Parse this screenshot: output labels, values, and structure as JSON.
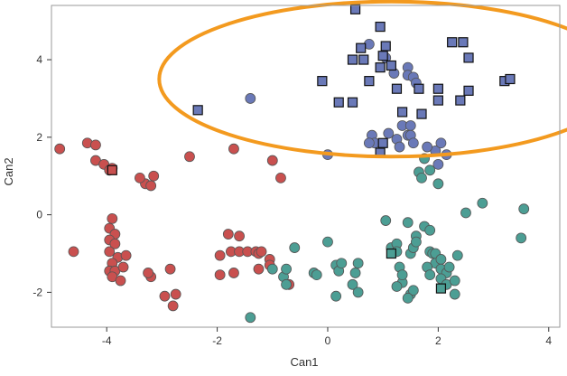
{
  "chart_data": {
    "type": "scatter",
    "xlabel": "Can1",
    "ylabel": "Can2",
    "xlim": [
      -5.0,
      4.2
    ],
    "ylim": [
      -2.9,
      5.4
    ],
    "xticks": [
      -4,
      -2,
      0,
      2,
      4
    ],
    "yticks": [
      -2,
      0,
      2,
      4
    ],
    "grid": false,
    "legend": "none",
    "colors": {
      "red": "#c9504f",
      "teal": "#4c9e94",
      "blue": "#6a79b8",
      "marker_edge": "#3a3a3a",
      "ellipse": "#f39a1f",
      "frame": "#9a9a9a"
    },
    "series": [
      {
        "color_key": "red",
        "marker": "circle",
        "points": [
          [
            -4.85,
            1.7
          ],
          [
            -4.35,
            1.85
          ],
          [
            -4.2,
            1.8
          ],
          [
            -4.2,
            1.4
          ],
          [
            -4.05,
            1.3
          ],
          [
            -3.95,
            1.15
          ],
          [
            -3.9,
            1.2
          ],
          [
            -3.15,
            1.0
          ],
          [
            -3.3,
            0.8
          ],
          [
            -3.4,
            0.95
          ],
          [
            -3.2,
            0.75
          ],
          [
            -2.5,
            1.5
          ],
          [
            -1.7,
            1.7
          ],
          [
            -1.0,
            1.4
          ],
          [
            -0.85,
            0.95
          ],
          [
            -4.6,
            -0.95
          ],
          [
            -3.9,
            -0.1
          ],
          [
            -3.95,
            -0.35
          ],
          [
            -3.85,
            -0.5
          ],
          [
            -3.95,
            -0.65
          ],
          [
            -3.85,
            -0.75
          ],
          [
            -3.95,
            -0.95
          ],
          [
            -3.8,
            -1.1
          ],
          [
            -3.65,
            -1.05
          ],
          [
            -3.9,
            -1.25
          ],
          [
            -3.95,
            -1.45
          ],
          [
            -3.85,
            -1.45
          ],
          [
            -3.9,
            -1.6
          ],
          [
            -3.75,
            -1.7
          ],
          [
            -3.7,
            -1.35
          ],
          [
            -3.2,
            -1.6
          ],
          [
            -3.25,
            -1.5
          ],
          [
            -2.85,
            -1.4
          ],
          [
            -2.8,
            -2.35
          ],
          [
            -2.95,
            -2.1
          ],
          [
            -2.75,
            -2.05
          ],
          [
            -1.8,
            -0.5
          ],
          [
            -1.75,
            -0.95
          ],
          [
            -1.6,
            -0.55
          ],
          [
            -1.6,
            -0.95
          ],
          [
            -1.45,
            -0.95
          ],
          [
            -1.3,
            -0.95
          ],
          [
            -1.25,
            -1.0
          ],
          [
            -1.2,
            -0.95
          ],
          [
            -1.05,
            -1.15
          ],
          [
            -1.05,
            -1.3
          ],
          [
            -1.25,
            -1.4
          ],
          [
            -1.95,
            -1.05
          ],
          [
            -1.95,
            -1.55
          ],
          [
            -1.7,
            -1.5
          ],
          [
            -0.7,
            -1.8
          ]
        ]
      },
      {
        "color_key": "teal",
        "marker": "circle",
        "points": [
          [
            1.75,
            1.45
          ],
          [
            1.65,
            1.1
          ],
          [
            1.85,
            1.15
          ],
          [
            2.0,
            0.8
          ],
          [
            1.7,
            0.95
          ],
          [
            -1.4,
            -2.65
          ],
          [
            -0.8,
            -1.6
          ],
          [
            -0.75,
            -1.8
          ],
          [
            -0.6,
            -0.85
          ],
          [
            -1.0,
            -1.4
          ],
          [
            -0.75,
            -1.4
          ],
          [
            -0.25,
            -1.5
          ],
          [
            -0.2,
            -1.55
          ],
          [
            0.0,
            -0.7
          ],
          [
            0.15,
            -1.3
          ],
          [
            0.2,
            -1.45
          ],
          [
            0.25,
            -1.25
          ],
          [
            0.55,
            -1.25
          ],
          [
            0.5,
            -1.5
          ],
          [
            0.45,
            -1.8
          ],
          [
            0.15,
            -2.1
          ],
          [
            0.55,
            -2.0
          ],
          [
            1.05,
            -0.15
          ],
          [
            1.15,
            -0.85
          ],
          [
            1.25,
            -0.75
          ],
          [
            1.25,
            -0.95
          ],
          [
            1.3,
            -1.35
          ],
          [
            1.35,
            -1.75
          ],
          [
            1.5,
            -1.0
          ],
          [
            1.55,
            -0.85
          ],
          [
            1.6,
            -0.55
          ],
          [
            1.6,
            -0.7
          ],
          [
            1.45,
            -0.2
          ],
          [
            1.75,
            -0.3
          ],
          [
            1.85,
            -0.4
          ],
          [
            1.85,
            -0.95
          ],
          [
            1.9,
            -1.0
          ],
          [
            1.95,
            -1.0
          ],
          [
            1.95,
            -1.25
          ],
          [
            2.05,
            -1.15
          ],
          [
            2.05,
            -1.4
          ],
          [
            2.15,
            -1.5
          ],
          [
            2.2,
            -1.35
          ],
          [
            2.05,
            -1.65
          ],
          [
            2.15,
            -1.8
          ],
          [
            1.8,
            -1.35
          ],
          [
            1.85,
            -1.55
          ],
          [
            2.3,
            -1.7
          ],
          [
            2.3,
            -2.05
          ],
          [
            1.5,
            -2.05
          ],
          [
            1.55,
            -1.95
          ],
          [
            1.45,
            -2.15
          ],
          [
            1.35,
            -1.55
          ],
          [
            1.25,
            -1.85
          ],
          [
            2.5,
            0.05
          ],
          [
            2.8,
            0.3
          ],
          [
            3.55,
            0.15
          ],
          [
            3.5,
            -0.6
          ],
          [
            2.35,
            -1.05
          ]
        ]
      },
      {
        "color_key": "blue",
        "marker": "circle",
        "points": [
          [
            -1.4,
            3.0
          ],
          [
            0.0,
            1.55
          ],
          [
            0.75,
            4.4
          ],
          [
            1.05,
            4.05
          ],
          [
            1.2,
            3.65
          ],
          [
            1.45,
            2.05
          ],
          [
            1.35,
            2.3
          ],
          [
            1.5,
            2.3
          ],
          [
            1.5,
            2.05
          ],
          [
            1.25,
            1.95
          ],
          [
            1.3,
            1.75
          ],
          [
            1.55,
            1.85
          ],
          [
            1.1,
            2.1
          ],
          [
            0.8,
            2.05
          ],
          [
            0.85,
            1.85
          ],
          [
            0.75,
            1.85
          ],
          [
            1.95,
            1.65
          ],
          [
            2.0,
            1.3
          ],
          [
            1.8,
            1.75
          ],
          [
            2.05,
            1.85
          ],
          [
            2.15,
            1.55
          ],
          [
            1.45,
            3.8
          ],
          [
            1.45,
            3.6
          ],
          [
            1.55,
            3.55
          ],
          [
            1.6,
            3.4
          ]
        ]
      },
      {
        "color_key": "blue",
        "marker": "square",
        "points": [
          [
            -2.35,
            2.7
          ],
          [
            -0.1,
            3.45
          ],
          [
            0.2,
            2.9
          ],
          [
            0.45,
            2.9
          ],
          [
            0.5,
            5.3
          ],
          [
            0.45,
            4.0
          ],
          [
            0.6,
            4.3
          ],
          [
            0.65,
            4.0
          ],
          [
            0.75,
            3.45
          ],
          [
            0.95,
            4.85
          ],
          [
            1.0,
            4.1
          ],
          [
            1.05,
            4.35
          ],
          [
            0.95,
            3.8
          ],
          [
            1.15,
            3.85
          ],
          [
            1.25,
            3.25
          ],
          [
            1.35,
            2.65
          ],
          [
            1.65,
            3.25
          ],
          [
            1.7,
            2.6
          ],
          [
            2.0,
            3.25
          ],
          [
            2.0,
            2.95
          ],
          [
            2.25,
            4.45
          ],
          [
            2.45,
            4.45
          ],
          [
            2.55,
            4.05
          ],
          [
            2.4,
            2.95
          ],
          [
            2.55,
            3.2
          ],
          [
            3.2,
            3.45
          ],
          [
            3.3,
            3.5
          ],
          [
            0.95,
            1.6
          ],
          [
            1.0,
            1.85
          ]
        ]
      },
      {
        "color_key": "red",
        "marker": "square",
        "points": [
          [
            -3.9,
            1.15
          ]
        ]
      },
      {
        "color_key": "teal",
        "marker": "square",
        "points": [
          [
            1.15,
            -1.0
          ],
          [
            2.05,
            -1.9
          ]
        ]
      }
    ],
    "annotations": [
      {
        "shape": "ellipse",
        "color_key": "ellipse",
        "center": [
          1.15,
          3.5
        ],
        "radii": [
          4.2,
          2.0
        ]
      }
    ]
  }
}
